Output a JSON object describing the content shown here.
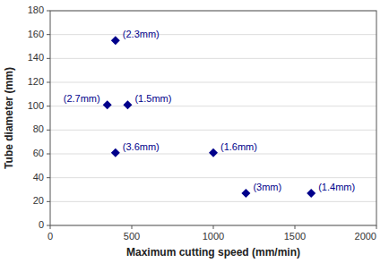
{
  "chart_data": {
    "type": "scatter",
    "x": [
      400,
      350,
      475,
      400,
      1000,
      1200,
      1600
    ],
    "values": [
      155,
      101,
      101,
      61,
      61,
      27,
      27
    ],
    "labels": [
      "(2.3mm)",
      "(2.7mm)",
      "(1.5mm)",
      "(3.6mm)",
      "(1.6mm)",
      "(3mm)",
      "(1.4mm)"
    ],
    "color": "#00008B",
    "marker": "diamond",
    "xlabel": "Maximum cutting speed (mm/min)",
    "ylabel": "Tube diameter (mm)",
    "xlim": [
      0,
      2000
    ],
    "ylim": [
      0,
      180
    ],
    "xticks": [
      0,
      500,
      1000,
      1500,
      2000
    ],
    "yticks": [
      0,
      20,
      40,
      60,
      80,
      100,
      120,
      140,
      160,
      180
    ],
    "grid": "y"
  }
}
